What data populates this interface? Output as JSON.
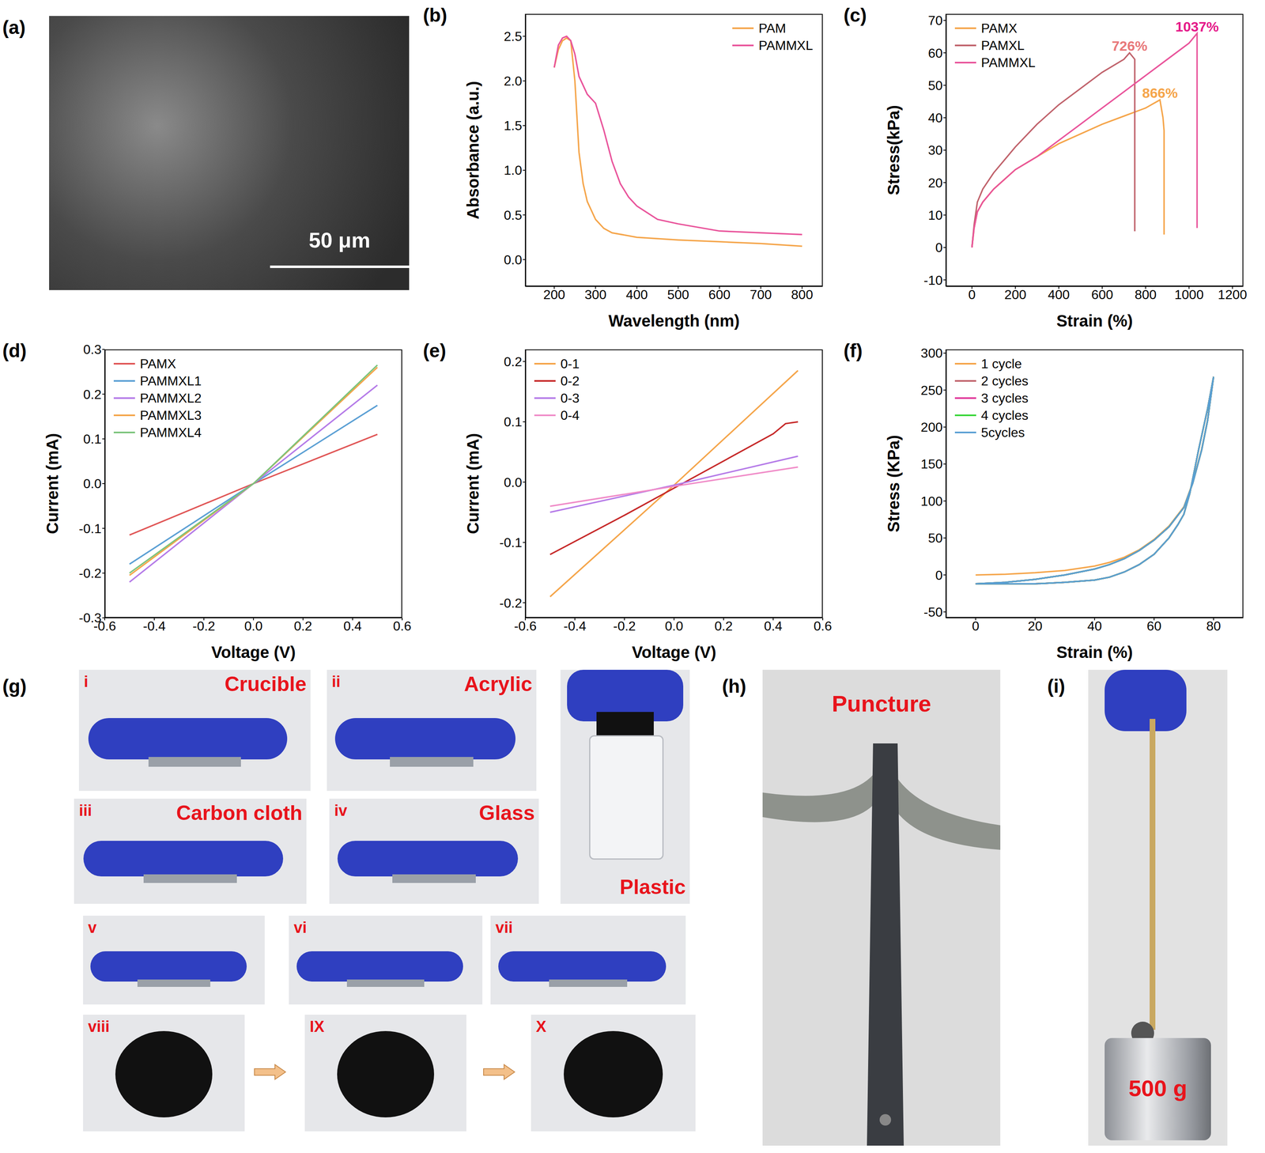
{
  "chart_data": [
    {
      "panel": "(b)",
      "type": "line",
      "x_label": "Wavelength (nm)",
      "y_label": "Absorbance (a.u.)",
      "xlim": [
        130,
        850
      ],
      "xticks": [
        200,
        300,
        400,
        500,
        600,
        700,
        800
      ],
      "ylim": [
        -0.3,
        2.75
      ],
      "yticks": [
        {
          "value": 0,
          "label": "0.0"
        },
        0.5,
        {
          "value": 1,
          "label": "1.0"
        },
        1.5,
        {
          "value": 2,
          "label": "2.0"
        },
        2.5
      ],
      "legend": "upper right",
      "series": [
        {
          "name": "PAM",
          "color": "#f5a54a",
          "x": [
            200,
            210,
            220,
            230,
            240,
            250,
            260,
            270,
            280,
            300,
            320,
            340,
            400,
            500,
            600,
            700,
            800
          ],
          "values": [
            2.15,
            2.35,
            2.45,
            2.48,
            2.45,
            2.0,
            1.2,
            0.85,
            0.65,
            0.45,
            0.35,
            0.3,
            0.25,
            0.22,
            0.2,
            0.18,
            0.15
          ]
        },
        {
          "name": "PAMMXL",
          "color": "#e9549b",
          "x": [
            200,
            210,
            220,
            230,
            240,
            250,
            260,
            280,
            300,
            320,
            340,
            360,
            380,
            400,
            450,
            500,
            600,
            700,
            800
          ],
          "values": [
            2.15,
            2.4,
            2.48,
            2.5,
            2.45,
            2.3,
            2.05,
            1.85,
            1.75,
            1.45,
            1.1,
            0.85,
            0.7,
            0.6,
            0.45,
            0.4,
            0.32,
            0.3,
            0.28
          ]
        }
      ]
    },
    {
      "panel": "(c)",
      "type": "line",
      "x_label": "Strain (%)",
      "y_label": "Stress(kPa)",
      "xlim": [
        -120,
        1250
      ],
      "xticks": [
        0,
        200,
        400,
        600,
        800,
        1000,
        1200
      ],
      "ylim": [
        -12,
        72
      ],
      "yticks": [
        -10,
        0,
        10,
        20,
        30,
        40,
        50,
        60,
        70
      ],
      "legend": "upper left",
      "series": [
        {
          "name": "PAMX",
          "color": "#f5a54a",
          "x": [
            0,
            10,
            25,
            50,
            100,
            150,
            200,
            300,
            400,
            500,
            600,
            700,
            800,
            866,
            880,
            885,
            885
          ],
          "values": [
            0,
            6,
            11,
            14,
            18,
            21,
            24,
            28,
            32,
            35,
            38,
            40.5,
            43,
            45.5,
            40,
            36,
            4
          ]
        },
        {
          "name": "PAMXL",
          "color": "#c0626b",
          "x": [
            0,
            10,
            25,
            50,
            100,
            150,
            200,
            300,
            400,
            500,
            600,
            700,
            726,
            750,
            750
          ],
          "values": [
            0,
            7,
            14,
            18,
            23,
            27,
            31,
            38,
            44,
            49,
            54,
            58,
            60,
            58,
            5
          ]
        },
        {
          "name": "PAMMXL",
          "color": "#e9549b",
          "x": [
            0,
            10,
            25,
            50,
            100,
            200,
            300,
            400,
            500,
            600,
            700,
            800,
            900,
            1000,
            1037,
            1037
          ],
          "values": [
            0,
            6,
            11,
            14,
            18,
            24,
            28,
            33,
            38,
            43,
            48,
            53,
            58,
            63,
            66,
            6
          ]
        }
      ],
      "annotations": [
        {
          "text": "726%",
          "series": "PAMXL",
          "color": "#e8797a"
        },
        {
          "text": "866%",
          "series": "PAMX",
          "color": "#f5a54a"
        },
        {
          "text": "1037%",
          "series": "PAMMXL",
          "color": "#e5198a"
        }
      ]
    },
    {
      "panel": "(d)",
      "type": "line",
      "x_label": "Voltage (V)",
      "y_label": "Current (mA)",
      "xlim": [
        -0.6,
        0.6
      ],
      "xticks": [
        -0.6,
        -0.4,
        -0.2,
        {
          "value": 0,
          "label": "0.0"
        },
        0.2,
        0.4,
        0.6
      ],
      "ylim": [
        -0.3,
        0.3
      ],
      "yticks": [
        -0.3,
        -0.2,
        -0.1,
        {
          "value": 0,
          "label": "0.0"
        },
        0.1,
        0.2,
        0.3
      ],
      "legend": "upper left",
      "series": [
        {
          "name": "PAMX",
          "color": "#e05555",
          "x": [
            -0.5,
            0,
            0.5
          ],
          "values": [
            -0.115,
            0,
            0.11
          ]
        },
        {
          "name": "PAMMXL1",
          "color": "#5a9fd4",
          "x": [
            -0.5,
            0,
            0.5
          ],
          "values": [
            -0.18,
            0,
            0.175
          ]
        },
        {
          "name": "PAMMXL2",
          "color": "#b57be8",
          "x": [
            -0.5,
            0,
            0.5
          ],
          "values": [
            -0.22,
            0,
            0.22
          ]
        },
        {
          "name": "PAMMXL3",
          "color": "#f5a54a",
          "x": [
            -0.5,
            0,
            0.5
          ],
          "values": [
            -0.205,
            0,
            0.26
          ]
        },
        {
          "name": "PAMMXL4",
          "color": "#7cc47c",
          "x": [
            -0.5,
            0,
            0.5
          ],
          "values": [
            -0.2,
            0,
            0.265
          ]
        }
      ]
    },
    {
      "panel": "(e)",
      "type": "line",
      "x_label": "Voltage (V)",
      "y_label": "Current (mA)",
      "xlim": [
        -0.6,
        0.6
      ],
      "xticks": [
        -0.6,
        -0.4,
        -0.2,
        {
          "value": 0,
          "label": "0.0"
        },
        0.2,
        0.4,
        0.6
      ],
      "ylim": [
        -0.225,
        0.22
      ],
      "yticks": [
        -0.2,
        -0.1,
        {
          "value": 0,
          "label": "0.0"
        },
        0.1,
        0.2
      ],
      "legend": "upper left",
      "series": [
        {
          "name": "0-1",
          "color": "#f5a54a",
          "x": [
            -0.5,
            0,
            0.5
          ],
          "values": [
            -0.19,
            -0.005,
            0.185
          ]
        },
        {
          "name": "0-2",
          "color": "#c62828",
          "x": [
            -0.5,
            -0.2,
            0,
            0.2,
            0.4,
            0.45,
            0.5
          ],
          "values": [
            -0.12,
            -0.055,
            -0.01,
            0.035,
            0.08,
            0.097,
            0.1
          ]
        },
        {
          "name": "0-3",
          "color": "#b57be8",
          "x": [
            -0.5,
            0,
            0.5
          ],
          "values": [
            -0.05,
            -0.005,
            0.043
          ]
        },
        {
          "name": "0-4",
          "color": "#f08cc8",
          "x": [
            -0.5,
            0,
            0.5
          ],
          "values": [
            -0.04,
            -0.007,
            0.025
          ]
        }
      ]
    },
    {
      "panel": "(f)",
      "type": "line",
      "x_label": "Strain (%)",
      "y_label": "Stress (KPa)",
      "xlim": [
        -10,
        90
      ],
      "xticks": [
        0,
        20,
        40,
        60,
        80
      ],
      "ylim": [
        -58,
        305
      ],
      "yticks": [
        -50,
        0,
        50,
        100,
        150,
        200,
        250,
        300
      ],
      "legend": "upper left",
      "series": [
        {
          "name": "1 cycle",
          "color": "#f5a54a",
          "x": [
            0,
            10,
            20,
            30,
            40,
            45,
            50,
            55,
            60,
            65,
            70,
            73,
            76,
            78,
            80,
            78,
            75,
            72,
            70,
            68,
            65,
            60,
            55,
            50,
            45,
            40,
            30,
            20,
            10,
            0
          ],
          "values": [
            0,
            1,
            3,
            6,
            12,
            17,
            24,
            34,
            48,
            66,
            92,
            125,
            170,
            210,
            268,
            225,
            170,
            110,
            82,
            68,
            50,
            28,
            14,
            4,
            -3,
            -7,
            -10,
            -12,
            -12,
            -12
          ]
        },
        {
          "name": "2 cycles",
          "color": "#c0626b",
          "x": [
            0,
            10,
            20,
            30,
            40,
            45,
            50,
            55,
            60,
            65,
            70,
            73,
            76,
            78,
            80,
            78,
            75,
            72,
            70,
            68,
            65,
            60,
            55,
            50,
            45,
            40,
            30,
            20,
            10,
            0
          ],
          "values": [
            -12,
            -10,
            -6,
            0,
            8,
            14,
            22,
            33,
            47,
            65,
            91,
            124,
            169,
            209,
            268,
            225,
            170,
            110,
            82,
            68,
            50,
            28,
            14,
            4,
            -3,
            -7,
            -10,
            -12,
            -12,
            -12
          ]
        },
        {
          "name": "3 cycles",
          "color": "#e0389a",
          "x": [
            0,
            10,
            20,
            30,
            40,
            45,
            50,
            55,
            60,
            65,
            70,
            73,
            76,
            78,
            80,
            78,
            75,
            72,
            70,
            68,
            65,
            60,
            55,
            50,
            45,
            40,
            30,
            20,
            10,
            0
          ],
          "values": [
            -12,
            -10,
            -6,
            0,
            8,
            14,
            22,
            33,
            47,
            65,
            91,
            124,
            169,
            209,
            268,
            225,
            170,
            110,
            82,
            68,
            50,
            28,
            14,
            4,
            -3,
            -7,
            -10,
            -12,
            -12,
            -12
          ]
        },
        {
          "name": "4 cycles",
          "color": "#39d639",
          "x": [
            0,
            10,
            20,
            30,
            40,
            45,
            50,
            55,
            60,
            65,
            70,
            73,
            76,
            78,
            80,
            78,
            75,
            72,
            70,
            68,
            65,
            60,
            55,
            50,
            45,
            40,
            30,
            20,
            10,
            0
          ],
          "values": [
            -12,
            -10,
            -6,
            0,
            8,
            14,
            22,
            33,
            47,
            65,
            91,
            124,
            169,
            209,
            268,
            225,
            170,
            110,
            82,
            68,
            50,
            28,
            14,
            4,
            -3,
            -7,
            -10,
            -12,
            -12,
            -12
          ]
        },
        {
          "name": "5cycles",
          "color": "#5a9fd4",
          "x": [
            0,
            10,
            20,
            30,
            40,
            45,
            50,
            55,
            60,
            65,
            70,
            73,
            76,
            78,
            80,
            78,
            75,
            72,
            70,
            68,
            65,
            60,
            55,
            50,
            45,
            40,
            30,
            20,
            10,
            0
          ],
          "values": [
            -12,
            -10,
            -6,
            0,
            8,
            14,
            22,
            33,
            47,
            65,
            91,
            124,
            169,
            209,
            268,
            225,
            170,
            110,
            82,
            68,
            50,
            28,
            14,
            4,
            -3,
            -7,
            -10,
            -12,
            -12,
            -12
          ]
        }
      ]
    }
  ],
  "photos": {
    "a": {
      "panel": "(a)",
      "scale_bar": "50 μm"
    },
    "g": {
      "panel": "(g)",
      "tiles": [
        {
          "index": "i",
          "label": "Crucible"
        },
        {
          "index": "ii",
          "label": "Acrylic"
        },
        {
          "label": "Plastic"
        },
        {
          "index": "iii",
          "label": "Carbon cloth"
        },
        {
          "index": "iv",
          "label": "Glass"
        },
        {
          "index": "v"
        },
        {
          "index": "vi"
        },
        {
          "index": "vii"
        },
        {
          "index": "viii"
        },
        {
          "index": "IX"
        },
        {
          "index": "X"
        }
      ]
    },
    "h": {
      "panel": "(h)",
      "label": "Puncture"
    },
    "i": {
      "panel": "(i)",
      "label": "500 g"
    }
  }
}
